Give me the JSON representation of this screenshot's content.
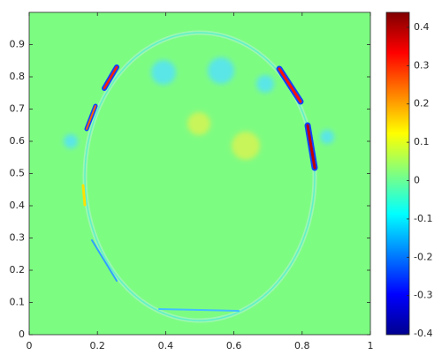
{
  "chart_data": {
    "type": "heatmap",
    "xlim": [
      0,
      1
    ],
    "xticks": [
      0,
      0.2,
      0.4,
      0.6,
      0.8,
      1
    ],
    "ylim": [
      0,
      1
    ],
    "yticks": [
      0,
      0.1,
      0.2,
      0.3,
      0.4,
      0.5,
      0.6,
      0.7,
      0.8,
      0.9
    ],
    "colormap": "jet",
    "clim": [
      -0.402,
      0.439
    ],
    "cticks": [
      -0.4,
      -0.3,
      -0.2,
      -0.1,
      0,
      0.1,
      0.2,
      0.3,
      0.4
    ]
  }
}
